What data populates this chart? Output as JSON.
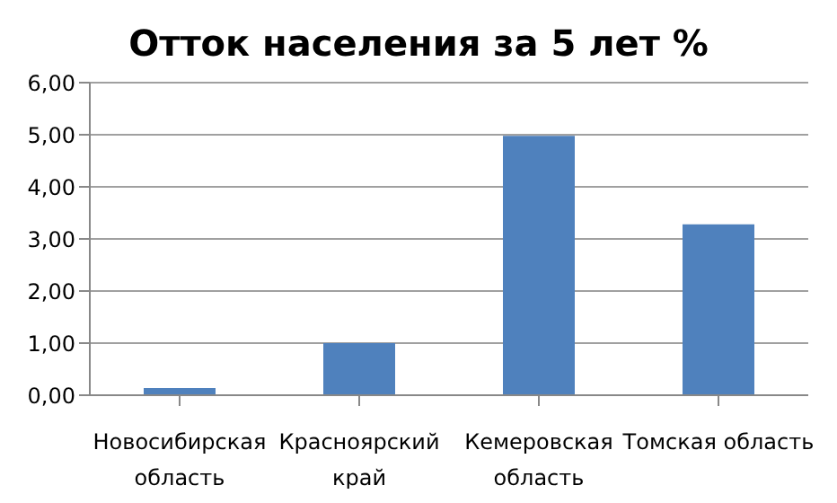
{
  "chart_data": {
    "type": "bar",
    "title": "Отток населения за 5 лет %",
    "categories": [
      "Новосибирская область",
      "Красноярский край",
      "Кемеровская область",
      "Томская область"
    ],
    "values": [
      0.14,
      1.0,
      4.98,
      3.28
    ],
    "color": "#4f81bd",
    "ylim": [
      0,
      6
    ],
    "yticks": [
      {
        "value": 0,
        "label": "0,00"
      },
      {
        "value": 1,
        "label": "1,00"
      },
      {
        "value": 2,
        "label": "2,00"
      },
      {
        "value": 3,
        "label": "3,00"
      },
      {
        "value": 4,
        "label": "4,00"
      },
      {
        "value": 5,
        "label": "5,00"
      },
      {
        "value": 6,
        "label": "6,00"
      }
    ],
    "grid": "y"
  }
}
